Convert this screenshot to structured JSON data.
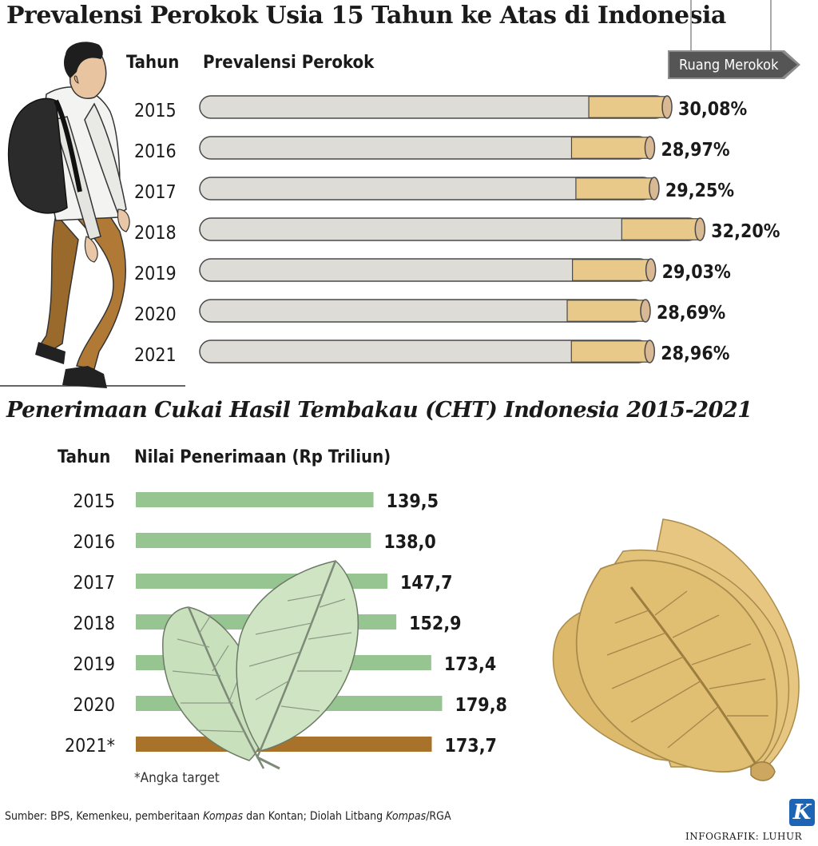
{
  "chart_data": [
    {
      "type": "bar",
      "title": "Prevalensi Perokok Usia 15 Tahun ke Atas di Indonesia",
      "category_header": "Tahun",
      "value_header": "Prevalensi Perokok",
      "categories": [
        "2015",
        "2016",
        "2017",
        "2018",
        "2019",
        "2020",
        "2021"
      ],
      "values": [
        30.08,
        28.97,
        29.25,
        32.2,
        29.03,
        28.69,
        28.96
      ],
      "value_labels": [
        "30,08%",
        "28,97%",
        "29,25%",
        "32,20%",
        "29,03%",
        "28,69%",
        "28,96%"
      ],
      "unit": "%"
    },
    {
      "type": "bar",
      "title": "Penerimaan Cukai Hasil Tembakau (CHT) Indonesia 2015-2021",
      "category_header": "Tahun",
      "value_header": "Nilai Penerimaan (Rp Triliun)",
      "categories": [
        "2015",
        "2016",
        "2017",
        "2018",
        "2019",
        "2020",
        "2021*"
      ],
      "values": [
        139.5,
        138.0,
        147.7,
        152.9,
        173.4,
        179.8,
        173.7
      ],
      "value_labels": [
        "139,5",
        "138,0",
        "147,7",
        "152,9",
        "173,4",
        "179,8",
        "173,7"
      ],
      "highlight_index": 6,
      "note": "*Angka target"
    }
  ],
  "sign": {
    "label": "Ruang Merokok"
  },
  "footer": {
    "source_parts": [
      "Sumber: BPS, Kemenkeu, pemberitaan ",
      "Kompas",
      " dan Kontan; Diolah Litbang ",
      "Kompas",
      "/RGA"
    ],
    "credit": "INFOGRAFIK: LUHUR",
    "logo_letter": "K"
  },
  "colors": {
    "cig_body": "#dedcd6",
    "cig_outline": "#4a4a4a",
    "filter": "#e8c98a",
    "filter_tip": "#d9b894",
    "bar_green": "#97c591",
    "bar_target": "#a9722a",
    "leaf_green": "#c9e0bc",
    "leaf_dry": "#e0bf72"
  }
}
